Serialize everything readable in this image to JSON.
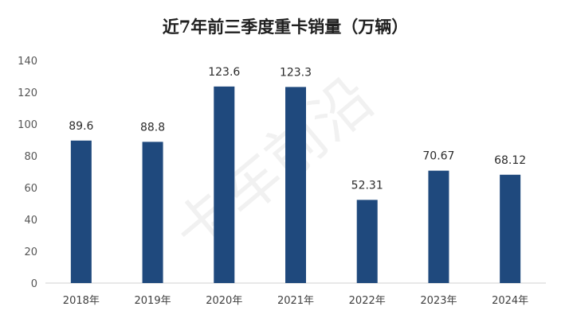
{
  "chart_data": {
    "type": "bar",
    "title": "近7年前三季度重卡销量（万辆）",
    "categories": [
      "2018年",
      "2019年",
      "2020年",
      "2021年",
      "2022年",
      "2023年",
      "2024年"
    ],
    "values": [
      89.6,
      88.8,
      123.6,
      123.3,
      52.31,
      70.67,
      68.12
    ],
    "data_labels": [
      "89.6",
      "88.8",
      "123.6",
      "123.3",
      "52.31",
      "70.67",
      "68.12"
    ],
    "ylim": [
      0,
      140
    ],
    "yticks": [
      0,
      20,
      40,
      60,
      80,
      100,
      120,
      140
    ],
    "grid": false,
    "legend": "none",
    "bar_color": "#1f497d"
  },
  "watermark": "卡车前沿"
}
